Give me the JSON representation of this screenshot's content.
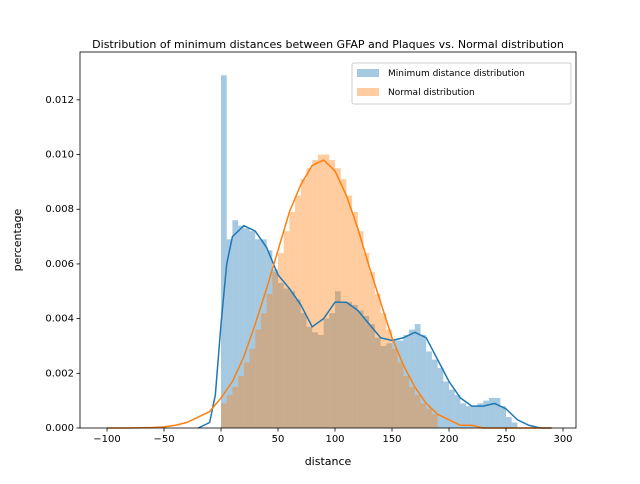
{
  "chart_data": {
    "type": "histogram",
    "title": "Distribution of minimum distances between GFAP and Plaques vs. Normal distribution",
    "x_label": "distance",
    "y_label": "percentage",
    "xlim": [
      -123.7,
      311.4
    ],
    "ylim": [
      0,
      0.01375
    ],
    "xticks": [
      {
        "value": -100,
        "label": "−100"
      },
      {
        "value": -50,
        "label": "−50"
      },
      0,
      50,
      100,
      150,
      200,
      250,
      300
    ],
    "yticks": [
      {
        "value": 0,
        "label": "0.000"
      },
      {
        "value": 0.002,
        "label": "0.002"
      },
      {
        "value": 0.004,
        "label": "0.004"
      },
      {
        "value": 0.006,
        "label": "0.006"
      },
      {
        "value": 0.008,
        "label": "0.008"
      },
      {
        "value": 0.01,
        "label": "0.010"
      },
      {
        "value": 0.012,
        "label": "0.012"
      }
    ],
    "legend": "upper right",
    "series": [
      {
        "name": "Minimum distance distribution",
        "color": "#1f77b4",
        "bins": [
          0,
          5,
          10,
          15,
          20,
          25,
          30,
          35,
          40,
          45,
          50,
          55,
          60,
          65,
          70,
          75,
          80,
          85,
          90,
          95,
          100,
          105,
          110,
          115,
          120,
          125,
          130,
          135,
          140,
          145,
          150,
          155,
          160,
          165,
          170,
          175,
          180,
          185,
          190,
          195,
          200,
          205,
          210,
          215,
          220,
          225,
          230,
          235,
          240,
          245,
          250,
          255,
          260
        ],
        "values": [
          0.0129,
          0.0069,
          0.0076,
          0.0074,
          0.0073,
          0.0072,
          0.0069,
          0.0069,
          0.0065,
          0.0058,
          0.0053,
          0.0051,
          0.005,
          0.0047,
          0.0042,
          0.0037,
          0.0035,
          0.0034,
          0.004,
          0.0042,
          0.005,
          0.0046,
          0.0046,
          0.0045,
          0.0043,
          0.0041,
          0.0038,
          0.0033,
          0.003,
          0.0031,
          0.0032,
          0.0032,
          0.0034,
          0.0036,
          0.0038,
          0.0034,
          0.0028,
          0.0025,
          0.0022,
          0.0017,
          0.0014,
          0.0012,
          0.0009,
          0.0008,
          0.0008,
          0.0009,
          0.001,
          0.0011,
          0.0011,
          0.0008,
          0.0004,
          0.0002
        ],
        "kde": {
          "x": [
            -20,
            -10,
            -5,
            0,
            5,
            10,
            20,
            30,
            40,
            50,
            60,
            70,
            80,
            90,
            100,
            110,
            120,
            130,
            140,
            150,
            160,
            170,
            180,
            190,
            200,
            210,
            220,
            230,
            240,
            250,
            260,
            270,
            280,
            290
          ],
          "y": [
            0,
            0.0002,
            0.0012,
            0.0038,
            0.006,
            0.007,
            0.0074,
            0.0072,
            0.0066,
            0.0056,
            0.0051,
            0.0045,
            0.0037,
            0.004,
            0.0046,
            0.0046,
            0.0043,
            0.0038,
            0.0033,
            0.0032,
            0.0033,
            0.0035,
            0.0033,
            0.0025,
            0.0017,
            0.0011,
            0.0008,
            0.0008,
            0.0009,
            0.0007,
            0.0003,
            0.0001,
            0,
            0
          ]
        }
      },
      {
        "name": "Normal distribution",
        "color": "#ff7f0e",
        "bins": [
          0,
          5,
          10,
          15,
          20,
          25,
          30,
          35,
          40,
          45,
          50,
          55,
          60,
          65,
          70,
          75,
          80,
          85,
          90,
          95,
          100,
          105,
          110,
          115,
          120,
          125,
          130,
          135,
          140,
          145,
          150,
          155,
          160,
          165,
          170,
          175,
          180,
          185,
          190
        ],
        "values": [
          0.0009,
          0.0012,
          0.0015,
          0.0019,
          0.0024,
          0.0029,
          0.0036,
          0.0042,
          0.0049,
          0.0057,
          0.0064,
          0.0072,
          0.0079,
          0.0085,
          0.0091,
          0.0095,
          0.0098,
          0.01,
          0.01,
          0.0098,
          0.0095,
          0.0091,
          0.0085,
          0.0079,
          0.0072,
          0.0064,
          0.0057,
          0.0049,
          0.0042,
          0.0036,
          0.0029,
          0.0024,
          0.0019,
          0.0015,
          0.0012,
          0.0009,
          0.0007,
          0.0005
        ],
        "kde": {
          "x": [
            -100,
            -90,
            -80,
            -70,
            -60,
            -50,
            -40,
            -30,
            -20,
            -10,
            0,
            10,
            20,
            30,
            40,
            50,
            60,
            70,
            80,
            90,
            100,
            110,
            120,
            130,
            140,
            150,
            160,
            170,
            180,
            190,
            200,
            210,
            220,
            230,
            240,
            250,
            260,
            270,
            280,
            290
          ],
          "y": [
            0,
            0,
            0,
            1e-05,
            2e-05,
            4e-05,
            0.0001,
            0.0002,
            0.0004,
            0.0006,
            0.0011,
            0.0017,
            0.0026,
            0.0038,
            0.0051,
            0.0065,
            0.0079,
            0.0089,
            0.0096,
            0.0098,
            0.0094,
            0.0085,
            0.0073,
            0.0059,
            0.0046,
            0.0033,
            0.0023,
            0.0015,
            0.0009,
            0.0005,
            0.0003,
            0.0001,
            0.0001,
            0,
            0,
            0,
            0,
            0,
            0,
            0
          ]
        }
      }
    ]
  }
}
